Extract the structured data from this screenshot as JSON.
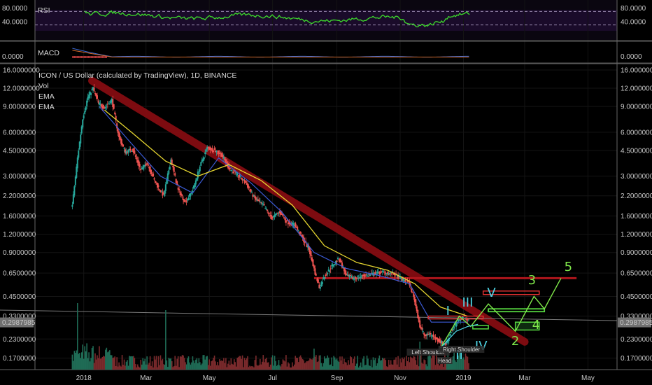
{
  "chart_data": {
    "type": "candlestick",
    "title": "ICON / US Dollar (calculated by TradingView), 1D, BINANCE",
    "indicators": [
      "Vol",
      "EMA",
      "EMA"
    ],
    "yscale": "log",
    "price_ticks": [
      "16.0000000",
      "12.0000000",
      "9.0000000",
      "6.0000000",
      "4.5000000",
      "3.0000000",
      "2.2000000",
      "1.6000000",
      "1.2000000",
      "0.9000000",
      "0.6500000",
      "0.4500000",
      "0.3300000",
      "0.2300000",
      "0.1700000"
    ],
    "current_price": "0.2987985",
    "x_ticks": [
      "2018",
      "Mar",
      "May",
      "Jul",
      "Sep",
      "Nov",
      "2019",
      "Mar",
      "May"
    ],
    "rsi": {
      "label": "RSI",
      "ticks": [
        "80.0000",
        "40.0000"
      ],
      "levels": [
        70,
        30
      ]
    },
    "macd": {
      "label": "MACD",
      "ticks": [
        "0.0000"
      ]
    },
    "price_path": [
      [
        "2017-12-20",
        1.9
      ],
      [
        "2017-12-25",
        4.0
      ],
      [
        "2017-12-30",
        7.5
      ],
      [
        "2018-01-04",
        10.5
      ],
      [
        "2018-01-09",
        12.0
      ],
      [
        "2018-01-14",
        9.5
      ],
      [
        "2018-01-20",
        8.8
      ],
      [
        "2018-01-27",
        10.0
      ],
      [
        "2018-02-03",
        5.5
      ],
      [
        "2018-02-09",
        4.4
      ],
      [
        "2018-02-16",
        4.6
      ],
      [
        "2018-02-24",
        3.3
      ],
      [
        "2018-03-02",
        3.7
      ],
      [
        "2018-03-10",
        2.7
      ],
      [
        "2018-03-18",
        2.2
      ],
      [
        "2018-03-25",
        3.9
      ],
      [
        "2018-04-01",
        2.4
      ],
      [
        "2018-04-08",
        2.0
      ],
      [
        "2018-04-15",
        2.4
      ],
      [
        "2018-04-22",
        3.5
      ],
      [
        "2018-04-29",
        4.7
      ],
      [
        "2018-05-06",
        4.5
      ],
      [
        "2018-05-13",
        4.2
      ],
      [
        "2018-05-20",
        3.4
      ],
      [
        "2018-05-27",
        3.1
      ],
      [
        "2018-06-05",
        2.7
      ],
      [
        "2018-06-14",
        2.1
      ],
      [
        "2018-06-22",
        1.9
      ],
      [
        "2018-06-30",
        1.55
      ],
      [
        "2018-07-08",
        1.7
      ],
      [
        "2018-07-15",
        1.45
      ],
      [
        "2018-07-22",
        1.4
      ],
      [
        "2018-07-29",
        1.15
      ],
      [
        "2018-08-05",
        0.95
      ],
      [
        "2018-08-11",
        0.65
      ],
      [
        "2018-08-15",
        0.52
      ],
      [
        "2018-08-20",
        0.62
      ],
      [
        "2018-08-27",
        0.72
      ],
      [
        "2018-09-03",
        0.82
      ],
      [
        "2018-09-10",
        0.62
      ],
      [
        "2018-09-18",
        0.6
      ],
      [
        "2018-09-26",
        0.62
      ],
      [
        "2018-10-05",
        0.64
      ],
      [
        "2018-10-15",
        0.66
      ],
      [
        "2018-10-25",
        0.64
      ],
      [
        "2018-11-01",
        0.6
      ],
      [
        "2018-11-10",
        0.55
      ],
      [
        "2018-11-15",
        0.42
      ],
      [
        "2018-11-20",
        0.28
      ],
      [
        "2018-11-25",
        0.24
      ],
      [
        "2018-11-30",
        0.25
      ],
      [
        "2018-12-05",
        0.23
      ],
      [
        "2018-12-10",
        0.22
      ],
      [
        "2018-12-15",
        0.21
      ],
      [
        "2018-12-20",
        0.26
      ],
      [
        "2018-12-26",
        0.3
      ],
      [
        "2019-01-01",
        0.33
      ],
      [
        "2019-01-06",
        0.31
      ]
    ],
    "ema_fast": [
      [
        "2018-01-15",
        9.0
      ],
      [
        "2018-02-10",
        5.5
      ],
      [
        "2018-03-15",
        3.0
      ],
      [
        "2018-04-15",
        2.3
      ],
      [
        "2018-05-10",
        4.0
      ],
      [
        "2018-06-10",
        2.7
      ],
      [
        "2018-07-10",
        1.7
      ],
      [
        "2018-08-10",
        0.9
      ],
      [
        "2018-09-10",
        0.7
      ],
      [
        "2018-10-10",
        0.63
      ],
      [
        "2018-11-10",
        0.55
      ],
      [
        "2018-12-01",
        0.3
      ],
      [
        "2019-01-05",
        0.3
      ]
    ],
    "ema_slow": [
      [
        "2018-01-20",
        8.5
      ],
      [
        "2018-02-15",
        6.0
      ],
      [
        "2018-03-20",
        3.8
      ],
      [
        "2018-04-20",
        3.0
      ],
      [
        "2018-05-20",
        3.6
      ],
      [
        "2018-06-20",
        2.8
      ],
      [
        "2018-07-20",
        1.9
      ],
      [
        "2018-08-20",
        1.0
      ],
      [
        "2018-09-20",
        0.77
      ],
      [
        "2018-10-20",
        0.68
      ],
      [
        "2018-11-15",
        0.55
      ],
      [
        "2018-12-10",
        0.38
      ],
      [
        "2019-01-05",
        0.33
      ]
    ],
    "trendline": {
      "from": [
        "2018-01-08",
        13.5
      ],
      "to": [
        "2019-03-01",
        0.22
      ],
      "color": "#8b0d12"
    },
    "support": {
      "value": 0.6,
      "from": "2018-08-10",
      "to": "2019-04-20",
      "color": "#b0161c"
    },
    "annotations": {
      "wave_roman": [
        "I",
        "II",
        "III",
        "IV",
        "V"
      ],
      "wave_arabic": [
        "3",
        "5",
        "2",
        "4"
      ],
      "pattern": [
        "Left Shoulder",
        "Head",
        "Right Shoulder"
      ]
    },
    "colors": {
      "up": "#26a69a",
      "down": "#ef5350",
      "rsi": "#3ddc2b",
      "ema_fast": "#3b5bd6",
      "ema_slow": "#e6d630",
      "wave": "#7fe84a",
      "roman": "#4fd6e6"
    }
  }
}
